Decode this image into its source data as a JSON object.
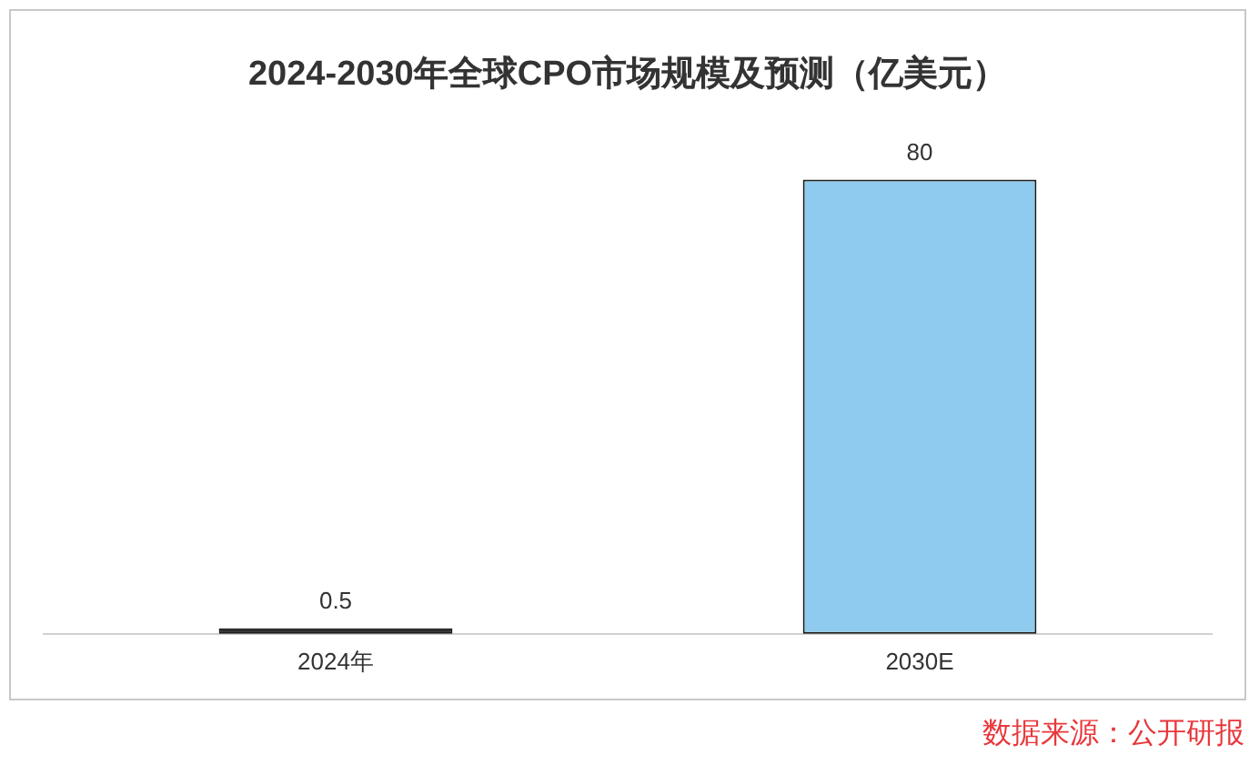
{
  "chart_data": {
    "type": "bar",
    "title": "2024-2030年全球CPO市场规模及预测（亿美元）",
    "categories": [
      "2024年",
      "2030E"
    ],
    "series": [
      {
        "colors": [
          "#1a1a1a",
          "#8ecbee"
        ],
        "values": [
          0.5,
          80
        ]
      }
    ],
    "data_labels": true,
    "grid": false,
    "legend": false,
    "annotations": [
      "数据来源：公开研报"
    ]
  }
}
